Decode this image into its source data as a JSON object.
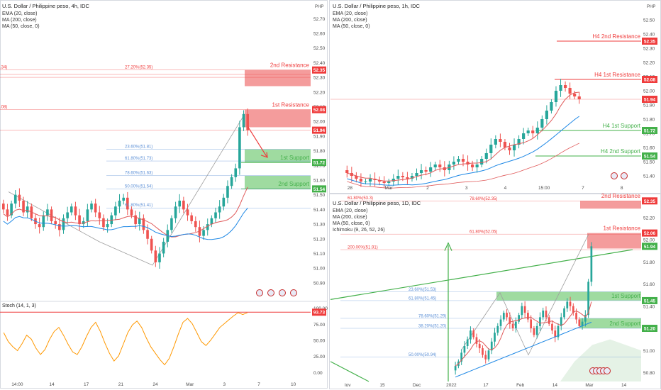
{
  "colors": {
    "up": "#26a69a",
    "down": "#ef5350",
    "resistance": "#ef3b3b",
    "resistance_fill": "#f28b8b",
    "support": "#43b04a",
    "support_fill": "#8ed58f",
    "ema": "#2962ff",
    "ma200": "#e05a5a",
    "ma50": "#1e88e5",
    "fib": "#5b8fd6",
    "stoch": "#ff9800",
    "axis_text": "#4a4a4a",
    "grid": "#eef0f4"
  },
  "charts": [
    {
      "id": "h4",
      "title": "U.S. Dollar / Philippine peso, 4h, IDC",
      "legend": [
        "EMA (20, close)",
        "MA (200, close)",
        "MA (50, close, 0)"
      ],
      "currency": "PHP",
      "y_ticks": [
        "52.70",
        "52.60",
        "52.50",
        "52.40",
        "52.30",
        "52.20",
        "52.10",
        "52.00",
        "51.90",
        "51.80",
        "51.70",
        "51.60",
        "51.50",
        "51.40",
        "51.30",
        "51.20",
        "51.10",
        "51.00",
        "50.90"
      ],
      "x_ticks": [
        "14:00",
        "14",
        "17",
        "21",
        "24",
        "Mar",
        "3",
        "7",
        "10"
      ],
      "price_tags": [
        {
          "value": "52.35",
          "kind": "resistance"
        },
        {
          "value": "52.08",
          "kind": "resistance"
        },
        {
          "value": "51.94",
          "kind": "resistance"
        },
        {
          "value": "51.72",
          "kind": "support"
        },
        {
          "value": "51.54",
          "kind": "support"
        }
      ],
      "zone_labels": [
        {
          "text": "2nd Resistance",
          "kind": "resistance"
        },
        {
          "text": "1st Resistance",
          "kind": "resistance"
        },
        {
          "text": "1st Support",
          "kind": "support"
        },
        {
          "text": "2nd Support",
          "kind": "support"
        }
      ],
      "fib_labels": [
        "27.20%(52.35)",
        "23.60%(51.81)",
        "61.80%(51.73)",
        "78.60%(51.63)",
        "50.00%(51.54)",
        "61.80%(51.41)"
      ],
      "edge_labels": [
        ".34)",
        ".08)"
      ],
      "stoch_title": "Stoch (14, 1, 3)",
      "stoch_ticks": [
        "100.00",
        "75.00",
        "50.00",
        "25.00",
        "0.00"
      ],
      "stoch_tag": "93.73"
    },
    {
      "id": "h1",
      "title": "U.S. Dollar / Philippine peso, 1h, IDC",
      "legend": [
        "EMA (20, close)",
        "MA (200, close)",
        "MA (50, close, 0)"
      ],
      "currency": "PHP",
      "y_ticks": [
        "52.50",
        "52.40",
        "52.30",
        "52.20",
        "52.10",
        "52.00",
        "51.90",
        "51.80",
        "51.70",
        "51.60",
        "51.50",
        "51.40"
      ],
      "x_ticks": [
        "28",
        "Mar",
        "2",
        "3",
        "4",
        "15:00",
        "7",
        "8"
      ],
      "price_tags": [
        {
          "value": "52.35",
          "kind": "resistance"
        },
        {
          "value": "52.08",
          "kind": "resistance"
        },
        {
          "value": "51.94",
          "kind": "resistance"
        },
        {
          "value": "51.72",
          "kind": "support"
        },
        {
          "value": "51.54",
          "kind": "support"
        }
      ],
      "zone_labels": [
        {
          "text": "H4 2nd Resistance",
          "kind": "resistance"
        },
        {
          "text": "H4 1st Resistance",
          "kind": "resistance"
        },
        {
          "text": "H4 1st Support",
          "kind": "support"
        },
        {
          "text": "H4 2nd Support",
          "kind": "support"
        }
      ]
    },
    {
      "id": "d1",
      "title": "U.S. Dollar / Philippine peso, 1D, IDC",
      "legend": [
        "EMA (20, close)",
        "MA (200, close)",
        "MA (50, close, 0)",
        "Ichimoku (9, 26, 52, 26)"
      ],
      "currency": "PHP",
      "y_ticks": [
        "52.20",
        "52.00",
        "51.80",
        "51.60",
        "51.40",
        "51.20",
        "51.00",
        "50.80"
      ],
      "x_ticks": [
        "lov",
        "15",
        "Dec",
        "2022",
        "17",
        "Feb",
        "14",
        "Mar",
        "14"
      ],
      "price_tags": [
        {
          "value": "52.35",
          "kind": "resistance"
        },
        {
          "value": "52.06",
          "kind": "resistance"
        },
        {
          "value": "51.94",
          "kind": "support"
        },
        {
          "value": "51.45",
          "kind": "support"
        },
        {
          "value": "51.20",
          "kind": "support"
        }
      ],
      "zone_labels": [
        {
          "text": "2nd Resistance",
          "kind": "resistance"
        },
        {
          "text": "1st Resistance",
          "kind": "resistance"
        },
        {
          "text": "1st Support",
          "kind": "support"
        },
        {
          "text": "2nd Support",
          "kind": "support"
        }
      ],
      "fib_labels": [
        "78.60%(52.35)",
        "61.80%(52.05)",
        "200.00%(51.91)",
        "23.60%(51.53)",
        "61.80%(51.45)",
        "78.60%(51.29)",
        "38.20%(51.20)",
        "50.00%(50.94)"
      ],
      "top_edge_label": "61.80%(53.3)"
    }
  ],
  "chart_data": [
    {
      "type": "candlestick",
      "title": "U.S. Dollar / Philippine peso, 4h, IDC",
      "ylim": [
        50.88,
        52.74
      ],
      "levels": [
        {
          "label": "2nd Resistance",
          "value": 52.35
        },
        {
          "label": "1st Resistance",
          "value": 52.08
        },
        {
          "label": "current",
          "value": 51.94
        },
        {
          "label": "1st Support",
          "value": 51.72
        },
        {
          "label": "2nd Support",
          "value": 51.54
        }
      ],
      "candles_close": [
        51.4,
        51.36,
        51.44,
        51.5,
        51.46,
        51.38,
        51.42,
        51.34,
        51.3,
        51.28,
        51.36,
        51.4,
        51.32,
        51.3,
        51.26,
        51.34,
        51.38,
        51.42,
        51.36,
        51.3,
        51.32,
        51.4,
        51.44,
        51.38,
        51.34,
        51.28,
        51.3,
        51.36,
        51.42,
        51.46,
        51.48,
        51.4,
        51.36,
        51.3,
        51.34,
        51.26,
        51.2,
        51.12,
        51.04,
        51.1,
        51.18,
        51.26,
        51.34,
        51.42,
        51.46,
        51.4,
        51.36,
        51.32,
        51.28,
        51.22,
        51.26,
        51.3,
        51.34,
        51.38,
        51.42,
        51.48,
        51.56,
        51.62,
        51.68,
        51.96,
        52.05,
        51.94
      ]
    },
    {
      "type": "candlestick",
      "title": "U.S. Dollar / Philippine peso, 1h, IDC",
      "ylim": [
        51.35,
        52.55
      ],
      "levels": [
        {
          "label": "H4 2nd Resistance",
          "value": 52.35
        },
        {
          "label": "H4 1st Resistance",
          "value": 52.08
        },
        {
          "label": "current",
          "value": 51.94
        },
        {
          "label": "H4 1st Support",
          "value": 51.72
        },
        {
          "label": "H4 2nd Support",
          "value": 51.54
        }
      ],
      "candles_close": [
        51.42,
        51.4,
        51.38,
        51.36,
        51.36,
        51.38,
        51.37,
        51.36,
        51.35,
        51.36,
        51.38,
        51.4,
        51.39,
        51.38,
        51.4,
        51.42,
        51.44,
        51.43,
        51.46,
        51.48,
        51.46,
        51.44,
        51.48,
        51.5,
        51.52,
        51.5,
        51.48,
        51.46,
        51.48,
        51.52,
        51.56,
        51.62,
        51.66,
        51.64,
        51.6,
        51.58,
        51.62,
        51.66,
        51.7,
        51.72,
        51.7,
        51.74,
        51.8,
        51.86,
        51.92,
        52.0,
        52.04,
        52.02,
        51.98,
        51.96,
        51.94
      ]
    },
    {
      "type": "candlestick",
      "title": "U.S. Dollar / Philippine peso, 1D, IDC",
      "ylim": [
        50.72,
        52.32
      ],
      "levels": [
        {
          "label": "2nd Resistance",
          "value": 52.35
        },
        {
          "label": "1st Resistance",
          "value": 52.06
        },
        {
          "label": "current",
          "value": 51.94
        },
        {
          "label": "1st Support",
          "value": 51.45
        },
        {
          "label": "2nd Support",
          "value": 51.2
        }
      ],
      "candles_close": [
        50.86,
        50.9,
        50.98,
        51.04,
        51.1,
        51.18,
        51.12,
        51.06,
        51.02,
        50.96,
        50.92,
        51.0,
        51.08,
        51.16,
        51.22,
        51.28,
        51.34,
        51.3,
        51.24,
        51.2,
        51.26,
        51.32,
        51.4,
        51.34,
        51.28,
        51.2,
        51.14,
        51.22,
        51.3,
        51.36,
        51.3,
        51.24,
        51.18,
        51.12,
        51.22,
        51.3,
        51.38,
        51.44,
        51.4,
        51.34,
        51.28,
        51.22,
        51.26,
        51.32,
        51.62,
        51.94
      ]
    },
    {
      "type": "line",
      "title": "Stoch (14, 1, 3)",
      "ylim": [
        -5,
        105
      ],
      "series": [
        {
          "name": "Stoch (14, 1, 3)",
          "values": [
            62,
            48,
            40,
            34,
            45,
            58,
            52,
            38,
            28,
            36,
            52,
            64,
            70,
            58,
            44,
            32,
            28,
            40,
            56,
            70,
            78,
            64,
            46,
            30,
            18,
            26,
            44,
            62,
            74,
            80,
            70,
            54,
            40,
            30,
            20,
            12,
            22,
            40,
            60,
            78,
            84,
            76,
            62,
            48,
            42,
            50,
            60,
            70,
            76,
            82,
            88,
            93,
            90,
            93
          ]
        }
      ],
      "reference_line": 93.73
    }
  ]
}
